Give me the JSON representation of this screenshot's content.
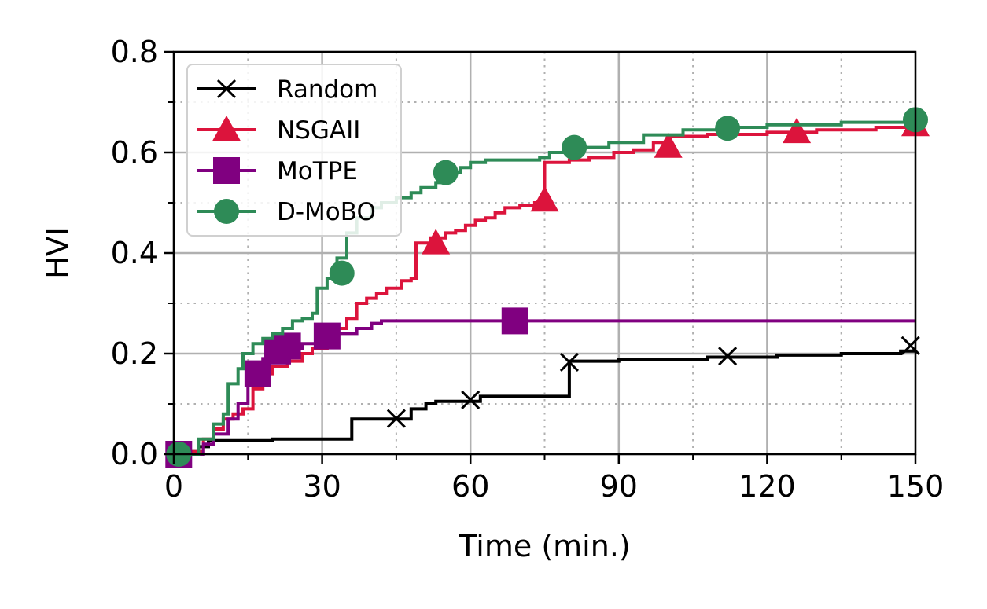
{
  "chart_data": {
    "type": "line",
    "title": "",
    "xlabel": "Time (min.)",
    "ylabel": "HVI",
    "xlim": [
      0,
      150
    ],
    "ylim": [
      0,
      0.8
    ],
    "x_ticks": [
      0,
      30,
      60,
      90,
      120,
      150
    ],
    "x_tick_labels": [
      "0",
      "30",
      "60",
      "90",
      "120",
      "150"
    ],
    "y_ticks": [
      0,
      0.2,
      0.4,
      0.6,
      0.8
    ],
    "y_tick_labels": [
      "0.0",
      "0.2",
      "0.4",
      "0.6",
      "0.8"
    ],
    "grid": "major solid, minor dotted",
    "legend_position": "top-left",
    "series": [
      {
        "name": "Random",
        "color": "#000000",
        "marker": "x",
        "step_points": [
          [
            0,
            0
          ],
          [
            3,
            0
          ],
          [
            3,
            0.005
          ],
          [
            5,
            0.005
          ],
          [
            5,
            0.015
          ],
          [
            7,
            0.015
          ],
          [
            7,
            0.027
          ],
          [
            20,
            0.027
          ],
          [
            20,
            0.03
          ],
          [
            36,
            0.03
          ],
          [
            36,
            0.07
          ],
          [
            48,
            0.07
          ],
          [
            48,
            0.09
          ],
          [
            51,
            0.09
          ],
          [
            51,
            0.1
          ],
          [
            53,
            0.1
          ],
          [
            53,
            0.105
          ],
          [
            62,
            0.105
          ],
          [
            62,
            0.115
          ],
          [
            80,
            0.115
          ],
          [
            80,
            0.185
          ],
          [
            90,
            0.185
          ],
          [
            90,
            0.188
          ],
          [
            108,
            0.188
          ],
          [
            108,
            0.193
          ],
          [
            122,
            0.193
          ],
          [
            122,
            0.197
          ],
          [
            135,
            0.197
          ],
          [
            135,
            0.2
          ],
          [
            147,
            0.2
          ],
          [
            147,
            0.205
          ],
          [
            150,
            0.205
          ]
        ],
        "markers": [
          [
            45,
            0.071
          ],
          [
            60,
            0.108
          ],
          [
            80,
            0.183
          ],
          [
            112,
            0.195
          ],
          [
            149,
            0.216
          ]
        ]
      },
      {
        "name": "NSGAII",
        "color": "#DC143C",
        "marker": "triangle",
        "step_points": [
          [
            0,
            0
          ],
          [
            4,
            0
          ],
          [
            4,
            0.005
          ],
          [
            6,
            0.005
          ],
          [
            6,
            0.03
          ],
          [
            8,
            0.03
          ],
          [
            8,
            0.05
          ],
          [
            10,
            0.05
          ],
          [
            10,
            0.07
          ],
          [
            12,
            0.07
          ],
          [
            12,
            0.08
          ],
          [
            14,
            0.08
          ],
          [
            14,
            0.09
          ],
          [
            16,
            0.09
          ],
          [
            16,
            0.13
          ],
          [
            18,
            0.13
          ],
          [
            18,
            0.16
          ],
          [
            20,
            0.16
          ],
          [
            20,
            0.175
          ],
          [
            23,
            0.175
          ],
          [
            23,
            0.185
          ],
          [
            26,
            0.185
          ],
          [
            26,
            0.2
          ],
          [
            28,
            0.2
          ],
          [
            28,
            0.21
          ],
          [
            31,
            0.21
          ],
          [
            31,
            0.23
          ],
          [
            33,
            0.23
          ],
          [
            33,
            0.25
          ],
          [
            35,
            0.25
          ],
          [
            35,
            0.27
          ],
          [
            37,
            0.27
          ],
          [
            37,
            0.3
          ],
          [
            39,
            0.3
          ],
          [
            39,
            0.31
          ],
          [
            41,
            0.31
          ],
          [
            41,
            0.32
          ],
          [
            43,
            0.32
          ],
          [
            43,
            0.33
          ],
          [
            46,
            0.33
          ],
          [
            46,
            0.345
          ],
          [
            48,
            0.345
          ],
          [
            48,
            0.35
          ],
          [
            49,
            0.35
          ],
          [
            49,
            0.42
          ],
          [
            52,
            0.42
          ],
          [
            52,
            0.43
          ],
          [
            55,
            0.43
          ],
          [
            55,
            0.44
          ],
          [
            57,
            0.44
          ],
          [
            57,
            0.445
          ],
          [
            59,
            0.445
          ],
          [
            59,
            0.455
          ],
          [
            61,
            0.455
          ],
          [
            61,
            0.465
          ],
          [
            63,
            0.465
          ],
          [
            63,
            0.47
          ],
          [
            65,
            0.47
          ],
          [
            65,
            0.48
          ],
          [
            67,
            0.48
          ],
          [
            67,
            0.49
          ],
          [
            70,
            0.49
          ],
          [
            70,
            0.495
          ],
          [
            73,
            0.495
          ],
          [
            73,
            0.5
          ],
          [
            75,
            0.5
          ],
          [
            75,
            0.58
          ],
          [
            80,
            0.58
          ],
          [
            80,
            0.585
          ],
          [
            84,
            0.585
          ],
          [
            84,
            0.59
          ],
          [
            89,
            0.59
          ],
          [
            89,
            0.6
          ],
          [
            93,
            0.6
          ],
          [
            93,
            0.605
          ],
          [
            97,
            0.605
          ],
          [
            97,
            0.62
          ],
          [
            100,
            0.62
          ],
          [
            100,
            0.632
          ],
          [
            108,
            0.632
          ],
          [
            108,
            0.636
          ],
          [
            120,
            0.636
          ],
          [
            120,
            0.64
          ],
          [
            130,
            0.64
          ],
          [
            130,
            0.645
          ],
          [
            142,
            0.645
          ],
          [
            142,
            0.65
          ],
          [
            150,
            0.65
          ]
        ],
        "markers": [
          [
            53,
            0.42
          ],
          [
            75,
            0.505
          ],
          [
            100,
            0.612
          ],
          [
            126,
            0.641
          ],
          [
            150,
            0.655
          ]
        ]
      },
      {
        "name": "MoTPE",
        "color": "#800080",
        "marker": "square",
        "step_points": [
          [
            0,
            0
          ],
          [
            6,
            0
          ],
          [
            6,
            0.02
          ],
          [
            8,
            0.02
          ],
          [
            8,
            0.04
          ],
          [
            11,
            0.04
          ],
          [
            11,
            0.07
          ],
          [
            13,
            0.07
          ],
          [
            13,
            0.1
          ],
          [
            15,
            0.1
          ],
          [
            15,
            0.14
          ],
          [
            16,
            0.14
          ],
          [
            16,
            0.17
          ],
          [
            18,
            0.17
          ],
          [
            18,
            0.19
          ],
          [
            20,
            0.19
          ],
          [
            20,
            0.2
          ],
          [
            22,
            0.2
          ],
          [
            22,
            0.21
          ],
          [
            26,
            0.21
          ],
          [
            26,
            0.22
          ],
          [
            29,
            0.22
          ],
          [
            29,
            0.235
          ],
          [
            32,
            0.235
          ],
          [
            32,
            0.24
          ],
          [
            37,
            0.24
          ],
          [
            37,
            0.25
          ],
          [
            40,
            0.25
          ],
          [
            40,
            0.26
          ],
          [
            42,
            0.26
          ],
          [
            42,
            0.265
          ],
          [
            150,
            0.265
          ]
        ],
        "markers": [
          [
            1,
            0
          ],
          [
            17,
            0.16
          ],
          [
            21,
            0.205
          ],
          [
            23,
            0.215
          ],
          [
            31,
            0.235
          ],
          [
            69,
            0.265
          ]
        ]
      },
      {
        "name": "D-MoBO",
        "color": "#2E8B57",
        "marker": "circle",
        "step_points": [
          [
            0,
            0
          ],
          [
            5,
            0
          ],
          [
            5,
            0.03
          ],
          [
            8,
            0.03
          ],
          [
            8,
            0.06
          ],
          [
            10,
            0.06
          ],
          [
            10,
            0.08
          ],
          [
            11,
            0.08
          ],
          [
            11,
            0.14
          ],
          [
            13,
            0.14
          ],
          [
            13,
            0.17
          ],
          [
            14,
            0.17
          ],
          [
            14,
            0.2
          ],
          [
            16,
            0.2
          ],
          [
            16,
            0.22
          ],
          [
            18,
            0.22
          ],
          [
            18,
            0.23
          ],
          [
            20,
            0.23
          ],
          [
            20,
            0.24
          ],
          [
            22,
            0.24
          ],
          [
            22,
            0.25
          ],
          [
            24,
            0.25
          ],
          [
            24,
            0.265
          ],
          [
            26,
            0.265
          ],
          [
            26,
            0.27
          ],
          [
            28,
            0.27
          ],
          [
            28,
            0.28
          ],
          [
            29,
            0.28
          ],
          [
            29,
            0.33
          ],
          [
            31,
            0.33
          ],
          [
            31,
            0.35
          ],
          [
            33,
            0.35
          ],
          [
            33,
            0.39
          ],
          [
            35,
            0.39
          ],
          [
            35,
            0.44
          ],
          [
            37,
            0.44
          ],
          [
            37,
            0.47
          ],
          [
            40,
            0.47
          ],
          [
            40,
            0.49
          ],
          [
            42,
            0.49
          ],
          [
            42,
            0.5
          ],
          [
            45,
            0.5
          ],
          [
            45,
            0.51
          ],
          [
            48,
            0.51
          ],
          [
            48,
            0.52
          ],
          [
            50,
            0.52
          ],
          [
            50,
            0.53
          ],
          [
            53,
            0.53
          ],
          [
            53,
            0.54
          ],
          [
            55,
            0.54
          ],
          [
            55,
            0.56
          ],
          [
            58,
            0.56
          ],
          [
            58,
            0.57
          ],
          [
            60,
            0.57
          ],
          [
            60,
            0.58
          ],
          [
            63,
            0.58
          ],
          [
            63,
            0.585
          ],
          [
            74,
            0.585
          ],
          [
            74,
            0.59
          ],
          [
            76,
            0.59
          ],
          [
            76,
            0.6
          ],
          [
            80,
            0.6
          ],
          [
            80,
            0.61
          ],
          [
            88,
            0.61
          ],
          [
            88,
            0.62
          ],
          [
            95,
            0.62
          ],
          [
            95,
            0.635
          ],
          [
            103,
            0.635
          ],
          [
            103,
            0.645
          ],
          [
            112,
            0.645
          ],
          [
            112,
            0.65
          ],
          [
            120,
            0.65
          ],
          [
            120,
            0.655
          ],
          [
            135,
            0.655
          ],
          [
            135,
            0.66
          ],
          [
            150,
            0.66
          ]
        ],
        "markers": [
          [
            1,
            0
          ],
          [
            34,
            0.36
          ],
          [
            55,
            0.56
          ],
          [
            81,
            0.61
          ],
          [
            112,
            0.648
          ],
          [
            150,
            0.665
          ]
        ]
      }
    ]
  }
}
